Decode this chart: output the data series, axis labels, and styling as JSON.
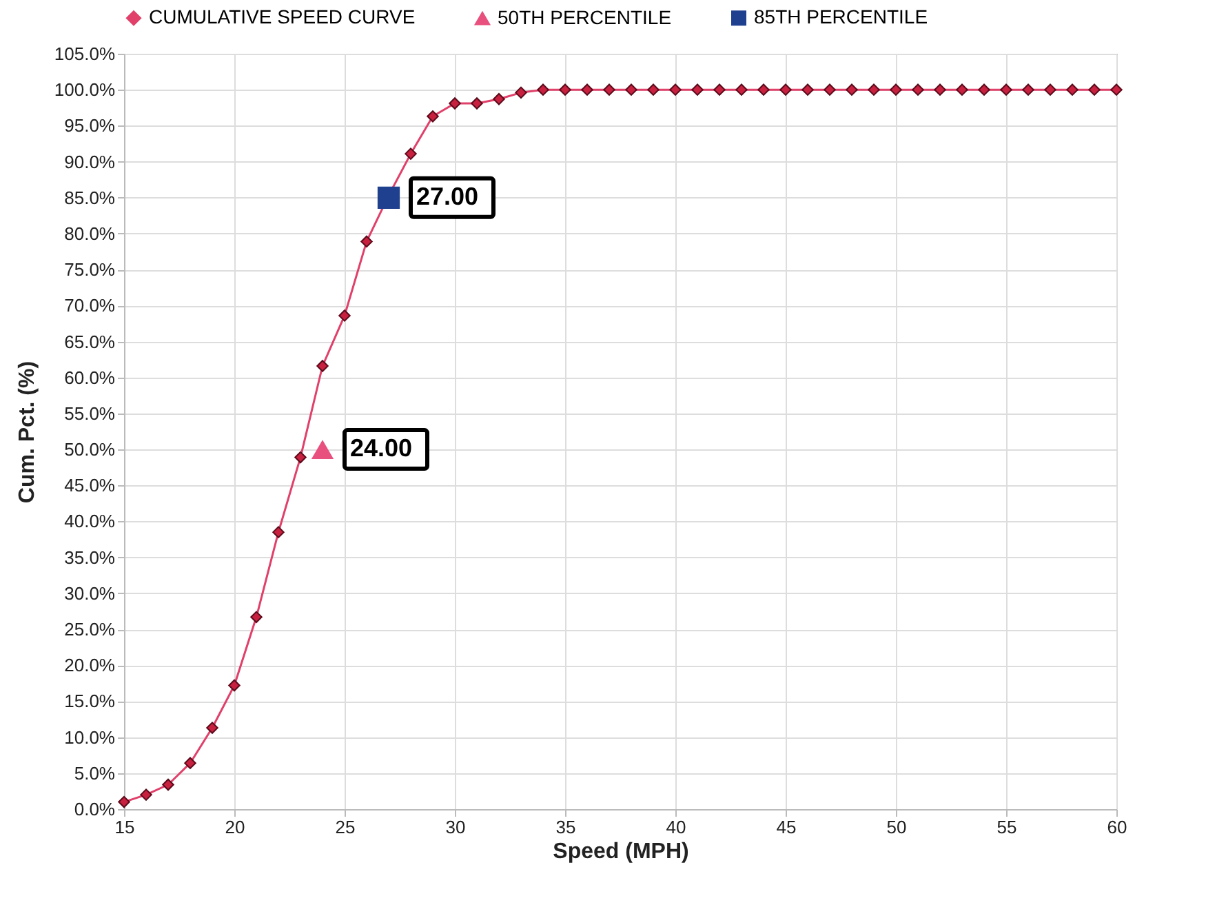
{
  "chart_data": {
    "type": "line",
    "xlabel": "Speed (MPH)",
    "ylabel": "Cum. Pct. (%)",
    "x": [
      15,
      16,
      17,
      18,
      19,
      20,
      21,
      22,
      23,
      24,
      25,
      26,
      27,
      28,
      29,
      30,
      31,
      32,
      33,
      34,
      35,
      36,
      37,
      38,
      39,
      40,
      41,
      42,
      43,
      44,
      45,
      46,
      47,
      48,
      49,
      50,
      51,
      52,
      53,
      54,
      55,
      56,
      57,
      58,
      59,
      60
    ],
    "series": [
      {
        "name": "CUMULATIVE SPEED CURVE",
        "color": "#e0406a",
        "marker": "diamond",
        "values": [
          1.0,
          2.0,
          3.4,
          6.4,
          11.3,
          17.2,
          26.7,
          38.5,
          48.9,
          61.6,
          68.6,
          78.9,
          85.3,
          91.1,
          96.3,
          98.1,
          98.1,
          98.7,
          99.6,
          100,
          100,
          100,
          100,
          100,
          100,
          100,
          100,
          100,
          100,
          100,
          100,
          100,
          100,
          100,
          100,
          100,
          100,
          100,
          100,
          100,
          100,
          100,
          100,
          100,
          100,
          100
        ]
      },
      {
        "name": "50TH PERCENTILE",
        "type": "scatter",
        "color": "#e8507e",
        "marker": "triangle",
        "x": [
          24
        ],
        "values": [
          50
        ]
      },
      {
        "name": "85TH PERCENTILE",
        "type": "scatter",
        "color": "#1f3f8f",
        "marker": "square",
        "x": [
          27
        ],
        "values": [
          85
        ]
      }
    ],
    "annotations": [
      {
        "text": "24.00",
        "x": 24,
        "y": 50
      },
      {
        "text": "27.00",
        "x": 27,
        "y": 85
      }
    ],
    "xlim": [
      15,
      60
    ],
    "xticks": [
      15,
      20,
      25,
      30,
      35,
      40,
      45,
      50,
      55,
      60
    ],
    "ylim": [
      0,
      105
    ],
    "yticks": [
      {
        "value": 0,
        "label": "0.0%"
      },
      {
        "value": 5,
        "label": "5.0%"
      },
      {
        "value": 10,
        "label": "10.0%"
      },
      {
        "value": 15,
        "label": "15.0%"
      },
      {
        "value": 20,
        "label": "20.0%"
      },
      {
        "value": 25,
        "label": "25.0%"
      },
      {
        "value": 30,
        "label": "30.0%"
      },
      {
        "value": 35,
        "label": "35.0%"
      },
      {
        "value": 40,
        "label": "40.0%"
      },
      {
        "value": 45,
        "label": "45.0%"
      },
      {
        "value": 50,
        "label": "50.0%"
      },
      {
        "value": 55,
        "label": "55.0%"
      },
      {
        "value": 60,
        "label": "60.0%"
      },
      {
        "value": 65,
        "label": "65.0%"
      },
      {
        "value": 70,
        "label": "70.0%"
      },
      {
        "value": 75,
        "label": "75.0%"
      },
      {
        "value": 80,
        "label": "80.0%"
      },
      {
        "value": 85,
        "label": "85.0%"
      },
      {
        "value": 90,
        "label": "90.0%"
      },
      {
        "value": 95,
        "label": "95.0%"
      },
      {
        "value": 100,
        "label": "100.0%"
      },
      {
        "value": 105,
        "label": "105.0%"
      }
    ],
    "grid": true,
    "legend": "top"
  }
}
